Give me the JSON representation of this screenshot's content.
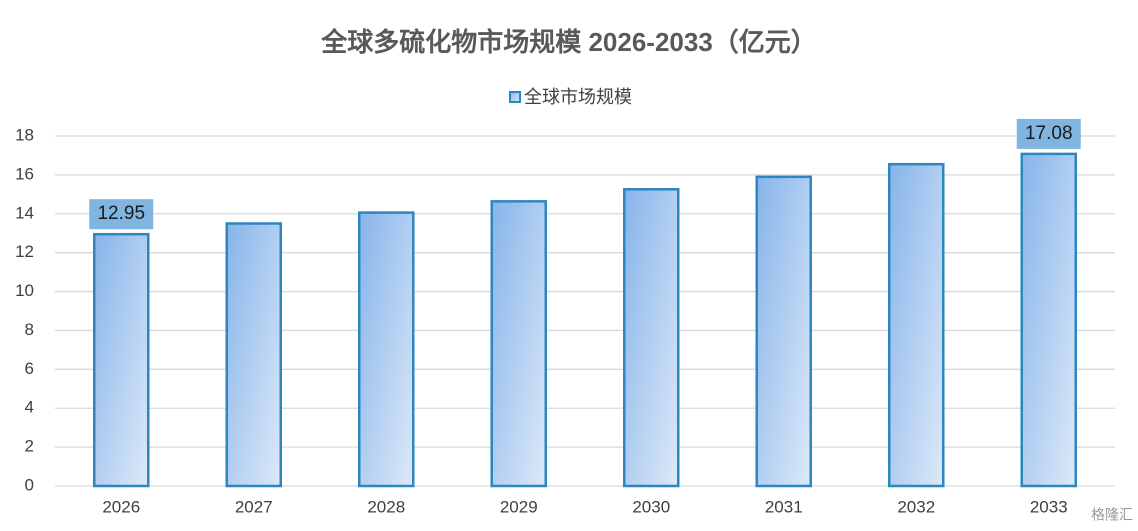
{
  "chart_data": {
    "type": "bar",
    "title": "全球多硫化物市场规模 2026-2033（亿元）",
    "categories": [
      "2026",
      "2027",
      "2028",
      "2029",
      "2030",
      "2031",
      "2032",
      "2033"
    ],
    "series": [
      {
        "name": "全球市场规模",
        "color": "#2e86c1",
        "values": [
          12.95,
          13.5,
          14.06,
          14.64,
          15.26,
          15.9,
          16.55,
          17.08
        ],
        "value_labels": [
          "12.95",
          null,
          null,
          null,
          null,
          null,
          null,
          "17.08"
        ]
      }
    ],
    "ylim": [
      0,
      18
    ],
    "yticks": [
      0,
      2,
      4,
      6,
      8,
      10,
      12,
      14,
      16,
      18
    ],
    "grid": true,
    "legend": "top",
    "watermark": "格隆汇"
  }
}
